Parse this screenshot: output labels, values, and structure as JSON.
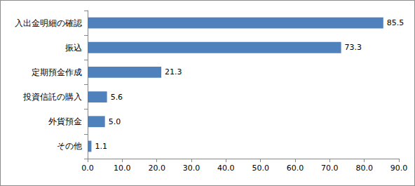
{
  "chart_data": {
    "type": "bar",
    "orientation": "horizontal",
    "categories": [
      "入出金明細の確認",
      "振込",
      "定期預金作成",
      "投資信託の購入",
      "外貨預金",
      "その他"
    ],
    "values": [
      85.5,
      73.3,
      21.3,
      5.6,
      5.0,
      1.1
    ],
    "value_labels": [
      "85.5",
      "73.3",
      "21.3",
      "5.6",
      "5.0",
      "1.1"
    ],
    "color": "#4f81bd",
    "xlim": [
      0,
      90
    ],
    "xticks": [
      {
        "value": 0,
        "label": "0.0"
      },
      {
        "value": 10,
        "label": "10.0"
      },
      {
        "value": 20,
        "label": "20.0"
      },
      {
        "value": 30,
        "label": "30.0"
      },
      {
        "value": 40,
        "label": "40.0"
      },
      {
        "value": 50,
        "label": "50.0"
      },
      {
        "value": 60,
        "label": "60.0"
      },
      {
        "value": 70,
        "label": "70.0"
      },
      {
        "value": 80,
        "label": "80.0"
      },
      {
        "value": 90,
        "label": "90.0"
      }
    ],
    "grid": false,
    "data_labels": true
  }
}
